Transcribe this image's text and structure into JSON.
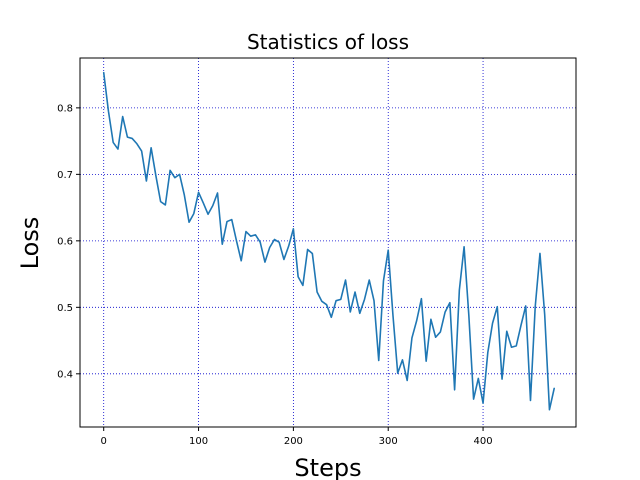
{
  "chart_data": {
    "type": "line",
    "title": "Statistics of loss",
    "xlabel": "Steps",
    "ylabel": "Loss",
    "xlim": [
      -25,
      498
    ],
    "ylim": [
      0.32,
      0.875
    ],
    "x_ticks": [
      0,
      100,
      200,
      300,
      400
    ],
    "y_ticks": [
      0.4,
      0.5,
      0.6,
      0.7,
      0.8
    ],
    "grid": true,
    "grid_color": "#0000cc",
    "legend": "none",
    "series": [
      {
        "color": "#1f77b4",
        "x": [
          0,
          5,
          10,
          15,
          20,
          25,
          30,
          35,
          40,
          45,
          50,
          55,
          60,
          65,
          70,
          75,
          80,
          85,
          90,
          95,
          100,
          105,
          110,
          115,
          120,
          125,
          130,
          135,
          140,
          145,
          150,
          155,
          160,
          165,
          170,
          175,
          180,
          185,
          190,
          195,
          200,
          205,
          210,
          215,
          220,
          225,
          230,
          235,
          240,
          245,
          250,
          255,
          260,
          265,
          270,
          275,
          280,
          285,
          290,
          295,
          300,
          305,
          310,
          315,
          320,
          325,
          330,
          335,
          340,
          345,
          350,
          355,
          360,
          365,
          370,
          375,
          380,
          385,
          390,
          395,
          400,
          405,
          410,
          415,
          420,
          425,
          430,
          435,
          440,
          445,
          450,
          455,
          460,
          465,
          470,
          475
        ],
        "y": [
          0.853,
          0.795,
          0.748,
          0.738,
          0.787,
          0.756,
          0.754,
          0.746,
          0.735,
          0.69,
          0.74,
          0.698,
          0.659,
          0.654,
          0.706,
          0.695,
          0.7,
          0.669,
          0.628,
          0.641,
          0.673,
          0.657,
          0.64,
          0.653,
          0.672,
          0.595,
          0.629,
          0.632,
          0.6,
          0.57,
          0.614,
          0.607,
          0.609,
          0.598,
          0.568,
          0.59,
          0.602,
          0.598,
          0.572,
          0.592,
          0.618,
          0.546,
          0.533,
          0.587,
          0.581,
          0.523,
          0.509,
          0.504,
          0.485,
          0.51,
          0.512,
          0.541,
          0.493,
          0.523,
          0.491,
          0.512,
          0.541,
          0.51,
          0.42,
          0.54,
          0.586,
          0.488,
          0.401,
          0.421,
          0.39,
          0.454,
          0.48,
          0.513,
          0.419,
          0.482,
          0.455,
          0.463,
          0.493,
          0.507,
          0.376,
          0.526,
          0.591,
          0.488,
          0.362,
          0.393,
          0.356,
          0.432,
          0.476,
          0.501,
          0.392,
          0.464,
          0.44,
          0.442,
          0.473,
          0.502,
          0.36,
          0.501,
          0.581,
          0.489,
          0.346,
          0.378
        ]
      }
    ]
  }
}
